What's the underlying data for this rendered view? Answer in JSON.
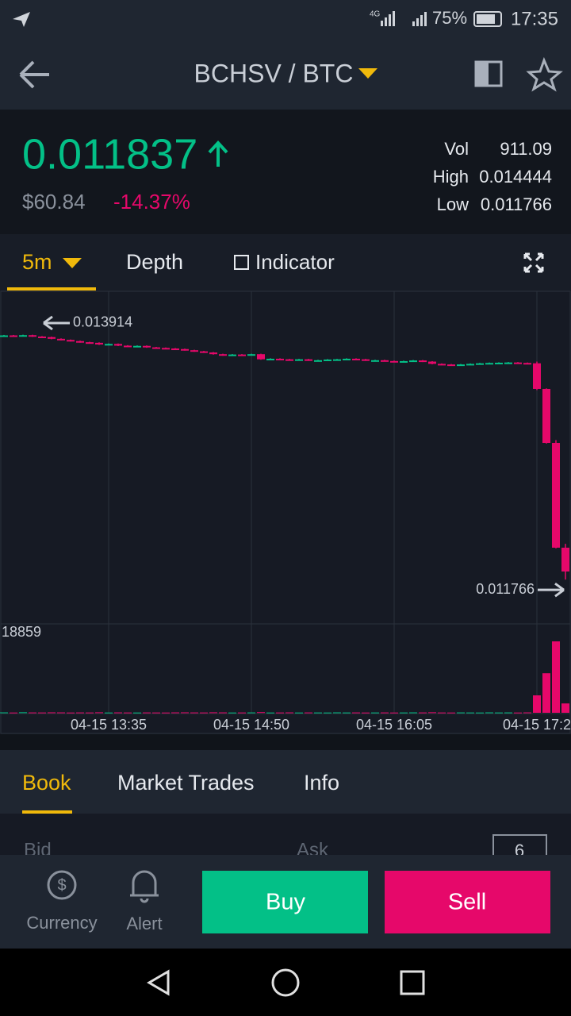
{
  "status_bar": {
    "network": "4G",
    "battery": "75%",
    "time": "17:35"
  },
  "header": {
    "pair": "BCHSV / BTC"
  },
  "ticker": {
    "price": "0.011837",
    "fiat": "$60.84",
    "change": "-14.37%",
    "stats": [
      {
        "label": "Vol",
        "value": "911.09"
      },
      {
        "label": "High",
        "value": "0.014444"
      },
      {
        "label": "Low",
        "value": "0.011766"
      }
    ]
  },
  "chart_tabs": [
    "5m",
    "Depth",
    "Indicator"
  ],
  "chart_data": {
    "type": "candlestick",
    "up_color": "#03c087",
    "down_color": "#e6086a",
    "ylim": [
      0.011384,
      0.014297
    ],
    "candles": [
      [
        0.013905,
        0.013914,
        0.013901,
        0.01391
      ],
      [
        0.01391,
        0.013914,
        0.013901,
        0.013905
      ],
      [
        0.013905,
        0.013916,
        0.013901,
        0.013912
      ],
      [
        0.013912,
        0.013916,
        0.013896,
        0.0139
      ],
      [
        0.0139,
        0.013904,
        0.013891,
        0.013895
      ],
      [
        0.013895,
        0.013899,
        0.013876,
        0.01388
      ],
      [
        0.01388,
        0.013884,
        0.013866,
        0.01387
      ],
      [
        0.01387,
        0.013874,
        0.013856,
        0.01386
      ],
      [
        0.01386,
        0.013864,
        0.013846,
        0.01385
      ],
      [
        0.01385,
        0.013854,
        0.013841,
        0.013845
      ],
      [
        0.013845,
        0.013849,
        0.013826,
        0.01383
      ],
      [
        0.01383,
        0.013839,
        0.013826,
        0.013835
      ],
      [
        0.013835,
        0.013839,
        0.013816,
        0.01382
      ],
      [
        0.01382,
        0.013824,
        0.013811,
        0.013815
      ],
      [
        0.013815,
        0.013822,
        0.013811,
        0.013818
      ],
      [
        0.013818,
        0.013822,
        0.013801,
        0.013805
      ],
      [
        0.013805,
        0.013809,
        0.013796,
        0.0138
      ],
      [
        0.0138,
        0.013804,
        0.013791,
        0.013795
      ],
      [
        0.013795,
        0.013799,
        0.013786,
        0.01379
      ],
      [
        0.01379,
        0.013794,
        0.013776,
        0.01378
      ],
      [
        0.01378,
        0.013784,
        0.013766,
        0.01377
      ],
      [
        0.01377,
        0.013774,
        0.013756,
        0.01376
      ],
      [
        0.01376,
        0.013764,
        0.013741,
        0.013745
      ],
      [
        0.013745,
        0.013749,
        0.013731,
        0.013735
      ],
      [
        0.013735,
        0.013746,
        0.013731,
        0.013742
      ],
      [
        0.013742,
        0.013746,
        0.013734,
        0.013738
      ],
      [
        0.013738,
        0.013749,
        0.013734,
        0.013745
      ],
      [
        0.013745,
        0.013749,
        0.013696,
        0.0137
      ],
      [
        0.0137,
        0.013709,
        0.013696,
        0.013705
      ],
      [
        0.013705,
        0.013709,
        0.013696,
        0.0137
      ],
      [
        0.0137,
        0.013704,
        0.013691,
        0.013695
      ],
      [
        0.013695,
        0.013704,
        0.013691,
        0.0137
      ],
      [
        0.0137,
        0.013704,
        0.013686,
        0.01369
      ],
      [
        0.01369,
        0.013696,
        0.013686,
        0.013692
      ],
      [
        0.013692,
        0.013702,
        0.013688,
        0.013698
      ],
      [
        0.013698,
        0.013704,
        0.013694,
        0.0137
      ],
      [
        0.0137,
        0.013709,
        0.013696,
        0.013705
      ],
      [
        0.013705,
        0.013709,
        0.013696,
        0.0137
      ],
      [
        0.0137,
        0.013704,
        0.013686,
        0.01369
      ],
      [
        0.01369,
        0.013696,
        0.013686,
        0.013692
      ],
      [
        0.013692,
        0.013696,
        0.013681,
        0.013685
      ],
      [
        0.013685,
        0.013689,
        0.013676,
        0.01368
      ],
      [
        0.01368,
        0.013688,
        0.013676,
        0.013684
      ],
      [
        0.013684,
        0.013694,
        0.01368,
        0.01369
      ],
      [
        0.01369,
        0.013694,
        0.013676,
        0.01368
      ],
      [
        0.01368,
        0.013684,
        0.013656,
        0.01366
      ],
      [
        0.01366,
        0.013664,
        0.013651,
        0.013655
      ],
      [
        0.013655,
        0.013659,
        0.013646,
        0.01365
      ],
      [
        0.01365,
        0.013659,
        0.013646,
        0.013655
      ],
      [
        0.013655,
        0.013664,
        0.013651,
        0.01366
      ],
      [
        0.01366,
        0.013669,
        0.013656,
        0.013665
      ],
      [
        0.013665,
        0.013672,
        0.013661,
        0.013668
      ],
      [
        0.013668,
        0.013674,
        0.013664,
        0.01367
      ],
      [
        0.01367,
        0.013676,
        0.013666,
        0.013672
      ],
      [
        0.013672,
        0.013676,
        0.013664,
        0.013668
      ],
      [
        0.013668,
        0.013672,
        0.013661,
        0.013665
      ],
      [
        0.013665,
        0.01368,
        0.01343,
        0.01344
      ],
      [
        0.01344,
        0.013445,
        0.01296,
        0.012966
      ],
      [
        0.012966,
        0.01299,
        0.01204,
        0.012046
      ],
      [
        0.012046,
        0.01208,
        0.011766,
        0.011837
      ]
    ],
    "volume": [
      90,
      60,
      120,
      80,
      70,
      100,
      90,
      60,
      80,
      70,
      110,
      60,
      90,
      70,
      60,
      80,
      70,
      60,
      90,
      100,
      80,
      70,
      110,
      90,
      60,
      70,
      80,
      150,
      60,
      70,
      90,
      60,
      80,
      70,
      60,
      90,
      70,
      80,
      60,
      70,
      80,
      60,
      70,
      90,
      80,
      120,
      70,
      60,
      80,
      70,
      60,
      90,
      70,
      80,
      60,
      90,
      4100,
      9300,
      16800,
      2200
    ],
    "volume_ylim": [
      0,
      18859
    ],
    "volume_ticks": [
      18859
    ],
    "xticks": [
      {
        "value": 11,
        "label": "04-15 13:35"
      },
      {
        "value": 26,
        "label": "04-15 14:50"
      },
      {
        "value": 41,
        "label": "04-15 16:05"
      },
      {
        "value": 56,
        "label": "04-15 17:2"
      }
    ],
    "max_marker": {
      "value": 0.013914,
      "label": "0.013914"
    },
    "min_marker": {
      "value": 0.011766,
      "label": "0.011766"
    }
  },
  "book_tabs": [
    "Book",
    "Market Trades",
    "Info"
  ],
  "book_header": {
    "bid": "Bid",
    "ask": "Ask",
    "depth": "6"
  },
  "bottom_bar": {
    "currency": "Currency",
    "alert": "Alert",
    "buy": "Buy",
    "sell": "Sell"
  }
}
